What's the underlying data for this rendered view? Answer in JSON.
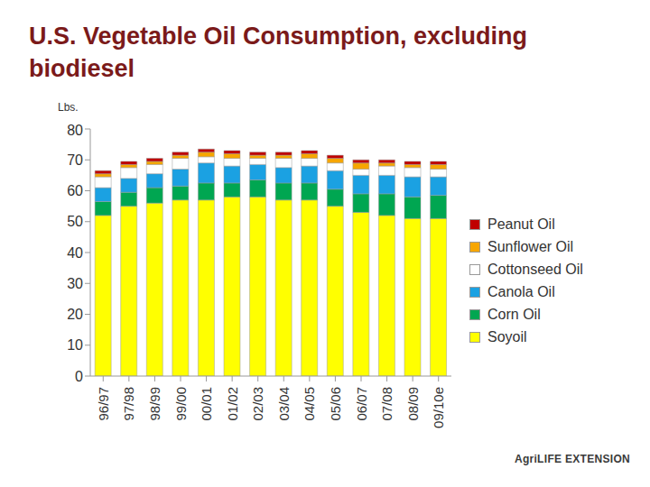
{
  "chart_data": {
    "type": "bar",
    "title": "U.S. Vegetable Oil Consumption, excluding biodiesel",
    "y_label": "Lbs.",
    "footer": "AgriLIFE EXTENSION",
    "categories": [
      "96/97",
      "97/98",
      "98/99",
      "99/00",
      "00/01",
      "01/02",
      "02/03",
      "03/04",
      "04/05",
      "05/06",
      "06/07",
      "07/08",
      "08/09",
      "09/10e"
    ],
    "stacked": true,
    "legend": "right",
    "grid": false,
    "ylim": [
      0,
      80
    ],
    "yticks": [
      0,
      10,
      20,
      30,
      40,
      50,
      60,
      70,
      80
    ],
    "series": [
      {
        "name": "Soyoil",
        "color": "#ffff00",
        "values": [
          52,
          55,
          56,
          57,
          57,
          58,
          58,
          57,
          57,
          55,
          53,
          52,
          51,
          51
        ]
      },
      {
        "name": "Corn Oil",
        "color": "#00a651",
        "values": [
          4.5,
          4.5,
          5,
          4.5,
          5.5,
          4.5,
          5.5,
          5.5,
          5.5,
          5.5,
          6,
          7,
          7,
          7.5
        ]
      },
      {
        "name": "Canola Oil",
        "color": "#1ba1e2",
        "values": [
          4.5,
          4.5,
          4.5,
          5.5,
          6.5,
          5.5,
          5,
          5,
          5.5,
          6,
          6,
          6,
          6.5,
          6
        ]
      },
      {
        "name": "Cottonseed Oil",
        "color": "#ffffff",
        "values": [
          3.5,
          3.5,
          3,
          3.5,
          2,
          2.5,
          2,
          3,
          2.5,
          2.5,
          2,
          3,
          3,
          2.5
        ]
      },
      {
        "name": "Sunflower Oil",
        "color": "#f7a600",
        "values": [
          1,
          1,
          1,
          1,
          1.5,
          1.5,
          1,
          1,
          1.5,
          1.5,
          2,
          1,
          1,
          1.5
        ]
      },
      {
        "name": "Peanut Oil",
        "color": "#c00000",
        "values": [
          1,
          1,
          1,
          1,
          1,
          1,
          1,
          1,
          1,
          1,
          1,
          1,
          1,
          1
        ]
      }
    ]
  }
}
